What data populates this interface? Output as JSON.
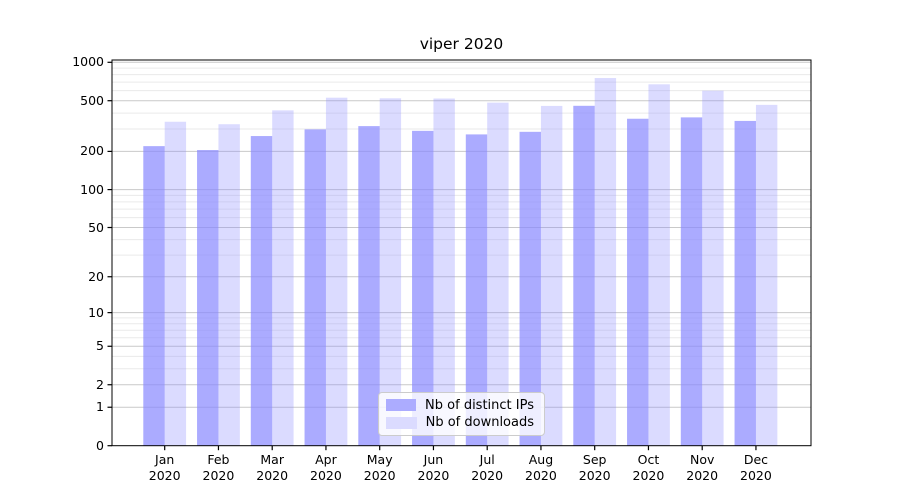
{
  "chart_data": {
    "type": "bar",
    "title": "viper 2020",
    "categories": [
      "Jan",
      "Feb",
      "Mar",
      "Apr",
      "May",
      "Jun",
      "Jul",
      "Aug",
      "Sep",
      "Oct",
      "Nov",
      "Dec"
    ],
    "x_sublabel": "2020",
    "series": [
      {
        "name": "Nb of distinct IPs",
        "values": [
          220,
          205,
          264,
          298,
          316,
          290,
          272,
          285,
          456,
          361,
          370,
          347
        ]
      },
      {
        "name": "Nb of downloads",
        "values": [
          342,
          327,
          420,
          528,
          522,
          520,
          483,
          455,
          753,
          672,
          599,
          464
        ]
      }
    ],
    "yscale": "log1p",
    "ylim": [
      0,
      1040
    ],
    "y_tick_values": [
      1000,
      500,
      200,
      100,
      50,
      20,
      10,
      5,
      2,
      1,
      0
    ],
    "y_tick_labels": [
      "1000",
      "500",
      "200",
      "100",
      "50",
      "20",
      "10",
      "5",
      "2",
      "1",
      "0"
    ],
    "y_minor_gridlines": [
      900,
      800,
      700,
      600,
      400,
      300,
      90,
      80,
      70,
      60,
      40,
      30,
      9,
      8,
      7,
      6,
      4,
      3
    ],
    "grid": "horizontal",
    "legend_position": "lower center",
    "colors": {
      "bar": "#8888ff",
      "series_opacity": [
        0.7,
        0.3
      ],
      "grid_major": "#c9c9c9",
      "grid_minor": "#eaeaea",
      "axis": "#000000",
      "background": "#ffffff"
    }
  }
}
